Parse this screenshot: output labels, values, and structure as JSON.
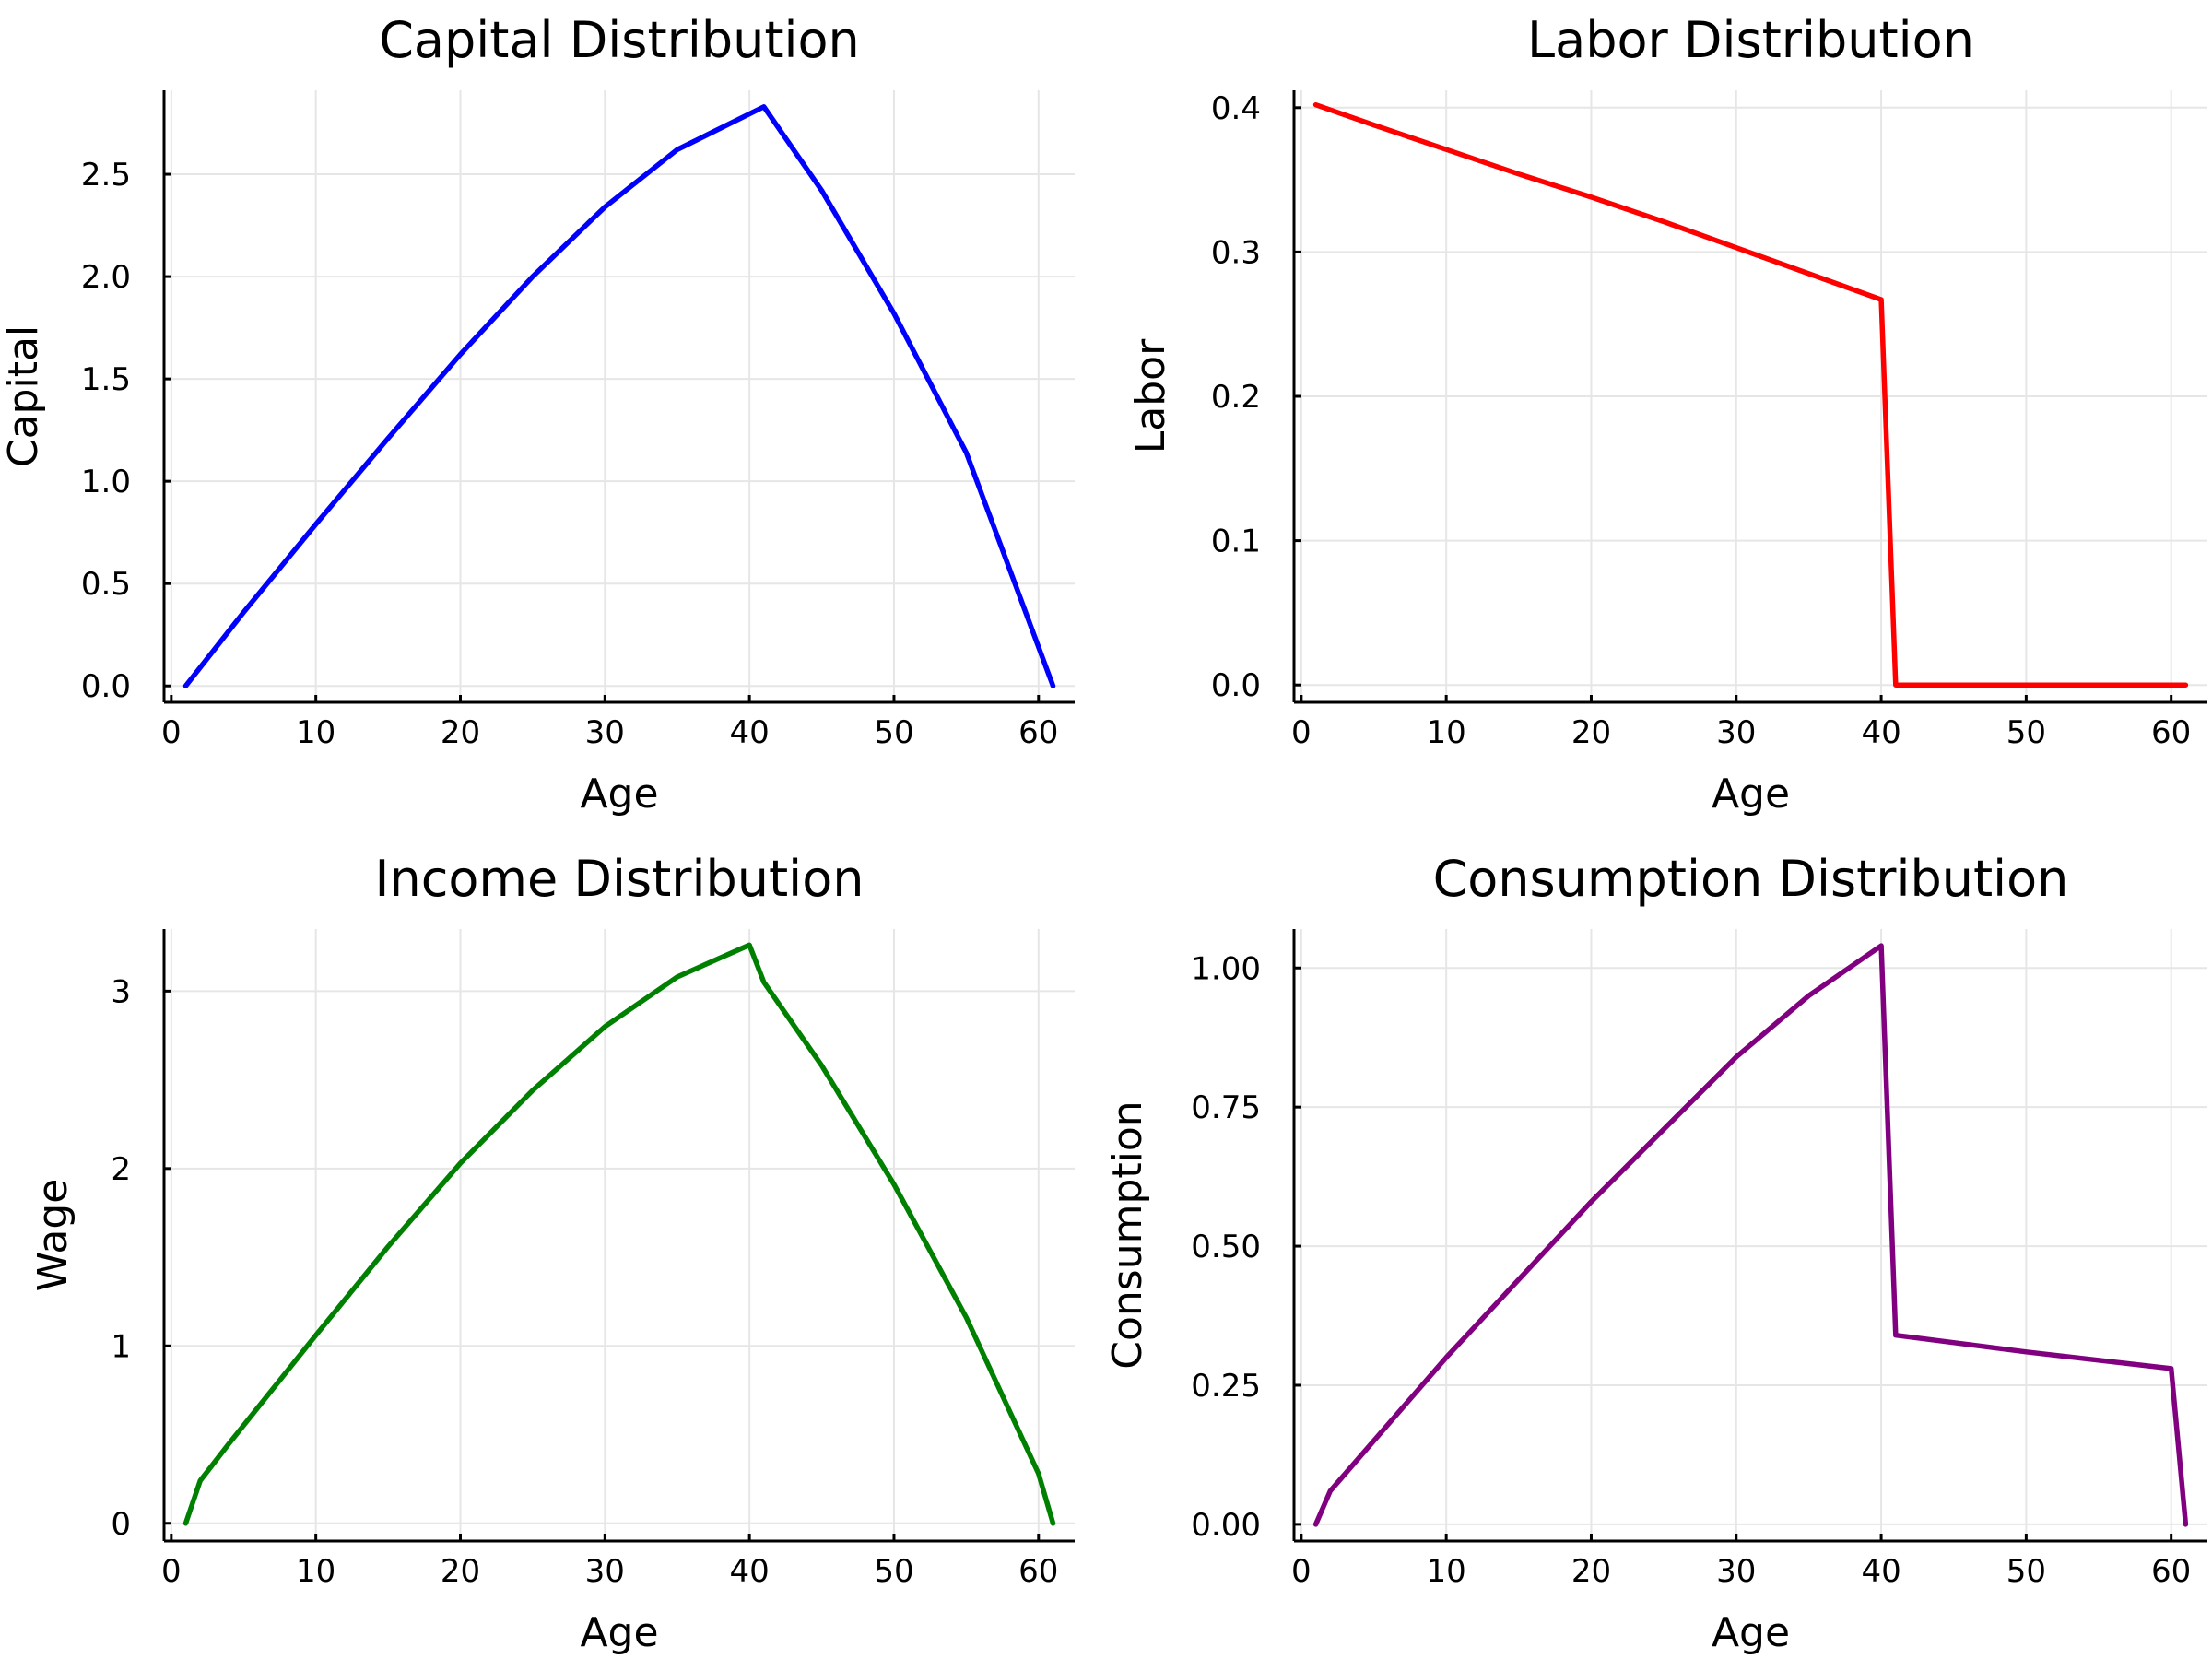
{
  "chart_data": [
    {
      "type": "line",
      "title": "Capital Distribution",
      "xlabel": "Age",
      "ylabel": "Capital",
      "xlim": [
        -0.5,
        62.5
      ],
      "ylim": [
        -0.08,
        2.91
      ],
      "xticks": [
        0,
        10,
        20,
        30,
        40,
        50,
        60
      ],
      "xtick_labels": [
        "0",
        "10",
        "20",
        "30",
        "40",
        "50",
        "60"
      ],
      "yticks": [
        0,
        0.5,
        1.0,
        1.5,
        2.0,
        2.5
      ],
      "ytick_labels": [
        "0.0",
        "0.5",
        "1.0",
        "1.5",
        "2.0",
        "2.5"
      ],
      "grid": true,
      "legend": "none",
      "series": [
        {
          "color": "#0000ff",
          "x": [
            1,
            5,
            10,
            15,
            20,
            25,
            30,
            35,
            41,
            45,
            50,
            55,
            61
          ],
          "y": [
            0.0,
            0.36,
            0.79,
            1.21,
            1.62,
            2.0,
            2.34,
            2.62,
            2.83,
            2.42,
            1.82,
            1.14,
            0.0
          ]
        }
      ]
    },
    {
      "type": "line",
      "title": "Labor Distribution",
      "xlabel": "Age",
      "ylabel": "Labor",
      "xlim": [
        -0.5,
        62.5
      ],
      "ylim": [
        -0.012,
        0.412
      ],
      "xticks": [
        0,
        10,
        20,
        30,
        40,
        50,
        60
      ],
      "xtick_labels": [
        "0",
        "10",
        "20",
        "30",
        "40",
        "50",
        "60"
      ],
      "yticks": [
        0,
        0.1,
        0.2,
        0.3,
        0.4
      ],
      "ytick_labels": [
        "0.0",
        "0.1",
        "0.2",
        "0.3",
        "0.4"
      ],
      "grid": true,
      "legend": "none",
      "series": [
        {
          "color": "#ff0000",
          "x": [
            1,
            5,
            10,
            15,
            20,
            25,
            30,
            35,
            40,
            41,
            50,
            61
          ],
          "y": [
            0.402,
            0.388,
            0.371,
            0.354,
            0.338,
            0.321,
            0.303,
            0.285,
            0.267,
            0.0,
            0.0,
            0.0
          ]
        }
      ]
    },
    {
      "type": "line",
      "title": "Income Distribution",
      "xlabel": "Age",
      "ylabel": "Wage",
      "xlim": [
        -0.5,
        62.5
      ],
      "ylim": [
        -0.1,
        3.35
      ],
      "xticks": [
        0,
        10,
        20,
        30,
        40,
        50,
        60
      ],
      "xtick_labels": [
        "0",
        "10",
        "20",
        "30",
        "40",
        "50",
        "60"
      ],
      "yticks": [
        0,
        1,
        2,
        3
      ],
      "ytick_labels": [
        "0",
        "1",
        "2",
        "3"
      ],
      "grid": true,
      "legend": "none",
      "series": [
        {
          "color": "#008000",
          "x": [
            1,
            2,
            4,
            10,
            15,
            20,
            25,
            30,
            35,
            40,
            41,
            45,
            50,
            55,
            60,
            61
          ],
          "y": [
            0.0,
            0.24,
            0.45,
            1.06,
            1.56,
            2.03,
            2.44,
            2.8,
            3.08,
            3.26,
            3.05,
            2.58,
            1.91,
            1.16,
            0.28,
            0.0
          ]
        }
      ]
    },
    {
      "type": "line",
      "title": "Consumption Distribution",
      "xlabel": "Age",
      "ylabel": "Consumption",
      "xlim": [
        -0.5,
        62.5
      ],
      "ylim": [
        -0.03,
        1.07
      ],
      "xticks": [
        0,
        10,
        20,
        30,
        40,
        50,
        60
      ],
      "xtick_labels": [
        "0",
        "10",
        "20",
        "30",
        "40",
        "50",
        "60"
      ],
      "yticks": [
        0,
        0.25,
        0.5,
        0.75,
        1.0
      ],
      "ytick_labels": [
        "0.00",
        "0.25",
        "0.50",
        "0.75",
        "1.00"
      ],
      "grid": true,
      "legend": "none",
      "series": [
        {
          "color": "#800080",
          "x": [
            1,
            2,
            5,
            10,
            15,
            20,
            25,
            30,
            35,
            40,
            41,
            50,
            60,
            61
          ],
          "y": [
            0.0,
            0.06,
            0.15,
            0.3,
            0.44,
            0.58,
            0.71,
            0.84,
            0.95,
            1.04,
            0.34,
            0.31,
            0.28,
            0.0
          ]
        }
      ]
    }
  ]
}
